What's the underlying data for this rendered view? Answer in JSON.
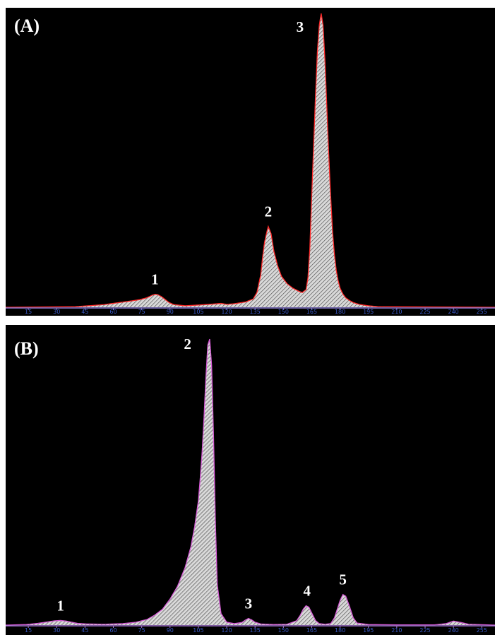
{
  "chart_data": [
    {
      "type": "area",
      "panel_label": "(A)",
      "x_ticks": [
        15,
        30,
        45,
        60,
        75,
        90,
        105,
        120,
        135,
        150,
        165,
        180,
        195,
        210,
        225,
        240,
        255
      ],
      "xlim": [
        3,
        262
      ],
      "ylim": [
        0,
        100
      ],
      "trace_color": "#ff2a2a",
      "axis_color": "#8c7ed6",
      "tick_label_color": "#3a59c6",
      "background": "#000000",
      "fill": "hatched-gray",
      "trace": {
        "x": [
          3,
          40,
          55,
          62,
          70,
          74,
          77,
          79,
          80.5,
          82,
          83.5,
          85.5,
          87.5,
          89.5,
          92,
          98,
          106,
          113,
          117,
          120,
          124,
          130,
          134,
          136,
          138,
          139,
          140,
          141,
          142,
          143.5,
          145,
          147,
          149,
          152,
          155,
          158,
          160,
          162,
          163,
          164,
          165,
          166,
          167,
          168,
          169,
          170,
          171,
          172,
          173,
          174,
          175,
          176,
          177,
          178,
          179,
          180,
          181.5,
          183,
          185,
          187,
          190,
          195,
          200,
          262
        ],
        "y": [
          0,
          0.2,
          0.9,
          1.5,
          2.2,
          2.6,
          3.1,
          3.6,
          4.1,
          4.4,
          4.3,
          3.6,
          2.6,
          1.6,
          0.9,
          0.5,
          0.8,
          1.1,
          1.3,
          1.0,
          1.2,
          1.8,
          2.8,
          5,
          11,
          17,
          22,
          25,
          27.5,
          25,
          19,
          14,
          10.5,
          8,
          6.5,
          5.5,
          5,
          6,
          10,
          20,
          38,
          55,
          72,
          87,
          96,
          100,
          96,
          84,
          68,
          52,
          38,
          26,
          18,
          12.5,
          9,
          6.5,
          4.5,
          3.2,
          2.3,
          1.6,
          1.0,
          0.5,
          0.2,
          0
        ]
      },
      "peaks": [
        {
          "label": "1",
          "x": 82,
          "height": 4.4
        },
        {
          "label": "2",
          "x": 142,
          "height": 27.5
        },
        {
          "label": "3",
          "x": 170,
          "height": 100
        }
      ]
    },
    {
      "type": "area",
      "panel_label": "(B)",
      "x_ticks": [
        15,
        30,
        45,
        60,
        75,
        90,
        105,
        120,
        135,
        150,
        165,
        180,
        195,
        210,
        225,
        240,
        255
      ],
      "xlim": [
        3,
        262
      ],
      "ylim": [
        0,
        100
      ],
      "trace_color": "#d65ad6",
      "axis_color": "#a878d6",
      "tick_label_color": "#3a59c6",
      "background": "#000000",
      "fill": "hatched-gray",
      "trace": {
        "x": [
          3,
          14,
          20,
          25,
          29,
          32,
          35,
          38,
          41,
          46,
          55,
          65,
          72,
          78,
          82,
          86,
          90,
          94,
          98,
          101,
          103,
          105,
          106,
          107,
          108,
          109,
          110,
          111,
          112,
          113,
          114,
          115,
          117,
          120,
          124,
          128,
          130,
          131.5,
          133,
          135,
          138,
          145,
          152,
          157,
          159,
          160.5,
          162,
          163.5,
          165,
          167,
          169,
          172,
          175,
          177,
          178.5,
          180,
          181.5,
          183,
          185,
          187,
          189,
          195,
          210,
          230,
          236,
          240,
          244,
          248,
          262
        ],
        "y": [
          0,
          0.2,
          0.6,
          1.1,
          1.5,
          1.6,
          1.4,
          1.0,
          0.6,
          0.4,
          0.3,
          0.5,
          1.0,
          2.0,
          3.5,
          5.5,
          9,
          13.5,
          20,
          27,
          34,
          43,
          51,
          60,
          72,
          86,
          97,
          99,
          90,
          66,
          36,
          14,
          4,
          1.0,
          0.5,
          0.9,
          1.8,
          2.3,
          1.9,
          1.0,
          0.4,
          0.2,
          0.3,
          1.5,
          3.5,
          5.5,
          6.7,
          6.2,
          4.2,
          1.6,
          0.5,
          0.3,
          0.5,
          2.5,
          5.5,
          8.5,
          10.6,
          10,
          6.5,
          2.5,
          0.7,
          0.2,
          0.1,
          0.1,
          0.5,
          1.4,
          0.9,
          0.3,
          0
        ]
      },
      "peaks": [
        {
          "label": "1",
          "x": 32,
          "height": 1.6
        },
        {
          "label": "2",
          "x": 110.5,
          "height": 99
        },
        {
          "label": "3",
          "x": 131.5,
          "height": 2.3
        },
        {
          "label": "4",
          "x": 162.5,
          "height": 6.7
        },
        {
          "label": "5",
          "x": 181.5,
          "height": 10.6
        }
      ]
    }
  ]
}
